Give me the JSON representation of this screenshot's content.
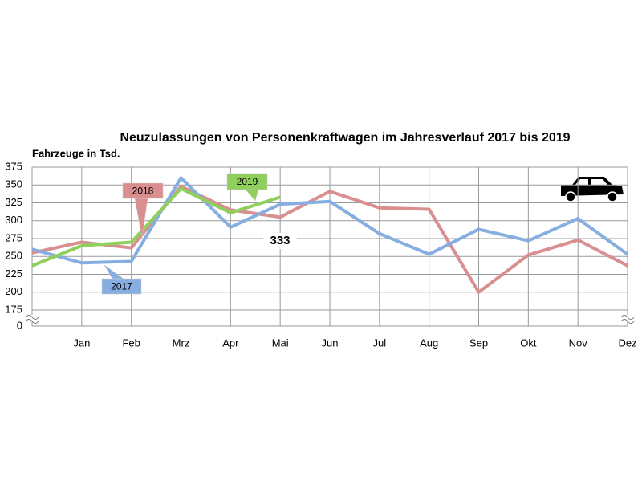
{
  "chart_data": {
    "type": "line",
    "title": "Neuzulassungen von Personenkraftwagen im Jahresverlauf 2017 bis 2019",
    "y_label": "Fahrzeuge in Tsd.",
    "categories": [
      null,
      "Jan",
      "Feb",
      "Mrz",
      "Apr",
      "Mai",
      "Jun",
      "Jul",
      "Aug",
      "Sep",
      "Okt",
      "Nov",
      "Dez"
    ],
    "series": [
      {
        "name": "2018",
        "color": "#d98f8f",
        "values": [
          255,
          270,
          262,
          348,
          315,
          305,
          341,
          318,
          316,
          200,
          252,
          273,
          237
        ]
      },
      {
        "name": "2017",
        "color": "#86aee0",
        "values": [
          260,
          241,
          243,
          360,
          291,
          323,
          327,
          282,
          253,
          288,
          272,
          303,
          253
        ]
      },
      {
        "name": "2019",
        "color": "#8fcf5c",
        "values": [
          237,
          265,
          270,
          345,
          311,
          333,
          null,
          null,
          null,
          null,
          null,
          null,
          null
        ]
      }
    ],
    "annotations": [
      "333"
    ],
    "ylim": [
      175,
      375
    ],
    "yticks": [
      0,
      175,
      200,
      225,
      250,
      275,
      300,
      325,
      350,
      375
    ],
    "axis_break": true,
    "grid": true
  }
}
